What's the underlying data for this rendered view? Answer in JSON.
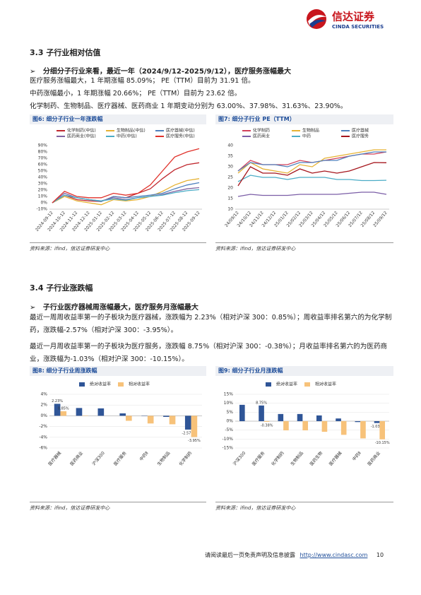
{
  "header": {
    "logo_cn": "信达证券",
    "logo_en": "CINDA SECURITIES"
  },
  "sections": [
    {
      "title": "3.3 子行业相对估值",
      "bullet": "分细分子行业来看，最近一年（2024/9/12-2025/9/12），医疗服务涨幅最大",
      "paragraphs": [
        "医疗服务涨幅最大，1 年期涨幅 85.09%； PE（TTM）目前为 31.91 倍。",
        "中药涨幅最小，1 年期涨幅 20.66%； PE（TTM）目前为 23.62 倍。",
        "化学制药、生物制品、医疗器械、医药商业 1 年期变动分别为 63.00%、37.98%、31.63%、23.90%。"
      ]
    },
    {
      "title": "3.4 子行业涨跌幅",
      "bullet": "子行业医疗器械周涨幅最大，医疗服务月涨幅最大",
      "paragraphs": [
        "最近一周周收益率第一的子板块为医疗器械，涨跌幅为 2.23%（相对沪深 300：0.85%）；周收益率排名第六的为化学制药，涨跌幅-2.57%（相对沪深 300：-3.95%）。",
        "最近一月周收益率第一的子板块为医疗服务，涨跌幅 8.75%（相对沪深 300：-0.38%）；月收益率排名第六的为医药商业，涨跌幅为-1.03%（相对沪深 300：-10.15%）。"
      ]
    }
  ],
  "chart_data": [
    {
      "type": "line",
      "title": "图6: 细分子行业一年涨跌幅",
      "source": "资料来源：ifind，信达证券研发中心",
      "categories": [
        "2024-09-12",
        "2024-10-12",
        "2024-11-12",
        "2024-12-12",
        "2025-01-12",
        "2025-02-12",
        "2025-03-12",
        "2025-04-12",
        "2025-05-12",
        "2025-06-12",
        "2025-07-12",
        "2025-08-12",
        "2025-09-12"
      ],
      "series": [
        {
          "name": "化学制药(中信)",
          "color": "#c0282e",
          "values": [
            0,
            12,
            5,
            3,
            2,
            10,
            8,
            15,
            22,
            38,
            52,
            60,
            63.0
          ]
        },
        {
          "name": "生物制品(中信)",
          "color": "#e6b233",
          "values": [
            0,
            10,
            3,
            0,
            -3,
            5,
            3,
            5,
            10,
            18,
            28,
            35,
            37.98
          ]
        },
        {
          "name": "医疗器械(中信)",
          "color": "#4f81bd",
          "values": [
            0,
            12,
            8,
            5,
            2,
            10,
            8,
            10,
            12,
            15,
            22,
            28,
            31.63
          ]
        },
        {
          "name": "医药商业(中信)",
          "color": "#8064a2",
          "values": [
            0,
            15,
            8,
            5,
            3,
            8,
            5,
            8,
            10,
            13,
            18,
            22,
            23.9
          ]
        },
        {
          "name": "中药(中信)",
          "color": "#4bacc6",
          "values": [
            0,
            12,
            8,
            5,
            3,
            6,
            4,
            8,
            10,
            12,
            16,
            19,
            20.66
          ]
        },
        {
          "name": "医疗服务(中信)",
          "color": "#e0312a",
          "values": [
            0,
            18,
            10,
            8,
            8,
            15,
            12,
            15,
            28,
            50,
            72,
            80,
            85.09
          ]
        }
      ],
      "ylim": [
        -10,
        90
      ],
      "yticks": [
        {
          "value": -10,
          "label": "-10%"
        },
        {
          "value": 0,
          "label": "0%"
        },
        {
          "value": 10,
          "label": "10%"
        },
        {
          "value": 20,
          "label": "20%"
        },
        {
          "value": 30,
          "label": "30%"
        },
        {
          "value": 40,
          "label": "40%"
        },
        {
          "value": 50,
          "label": "50%"
        },
        {
          "value": 60,
          "label": "60%"
        },
        {
          "value": 70,
          "label": "70%"
        },
        {
          "value": 80,
          "label": "80%"
        },
        {
          "value": 90,
          "label": "90%"
        }
      ]
    },
    {
      "type": "line",
      "title": "图7: 细分子行业 PE（TTM）",
      "source": "资料来源：ifind，信达证券研发中心",
      "categories": [
        "24/09/12",
        "24/10/12",
        "24/11/12",
        "24/12/12",
        "25/01/12",
        "25/02/12",
        "25/03/12",
        "25/04/12",
        "25/05/12",
        "25/06/12",
        "25/07/12",
        "25/08/12",
        "25/09/12"
      ],
      "series": [
        {
          "name": "化学制药",
          "color": "#d2415b",
          "values": [
            28,
            33,
            31,
            31,
            31,
            33,
            32,
            33,
            34,
            35,
            36,
            36,
            37
          ]
        },
        {
          "name": "生物制品",
          "color": "#e6b233",
          "values": [
            27,
            32,
            29,
            28,
            27,
            31,
            30,
            34,
            35,
            36,
            37,
            38,
            38
          ]
        },
        {
          "name": "医疗器械",
          "color": "#4f81bd",
          "values": [
            28,
            32,
            31,
            31,
            30,
            32,
            32,
            33,
            33,
            35,
            36,
            37,
            37
          ]
        },
        {
          "name": "医药商业",
          "color": "#7b5ea7",
          "values": [
            16,
            17,
            16.5,
            16.5,
            16.5,
            17,
            17,
            17,
            17,
            17.5,
            18,
            18,
            17
          ]
        },
        {
          "name": "中药",
          "color": "#4bacc6",
          "values": [
            23,
            26,
            25,
            25,
            24,
            25,
            25,
            25,
            24,
            24,
            23.5,
            23.5,
            23.62
          ]
        },
        {
          "name": "医疗服务",
          "color": "#a5151c",
          "values": [
            21,
            30,
            27,
            27,
            26,
            29,
            27,
            28,
            27,
            28,
            30,
            32,
            31.91
          ]
        }
      ],
      "ylim": [
        10,
        40
      ],
      "yticks": [
        10,
        15,
        20,
        25,
        30,
        35,
        40
      ]
    },
    {
      "type": "bar",
      "title": "图8: 细分子行业周涨跌幅",
      "source": "资料来源：ifind，信达证券研发中心",
      "categories": [
        "医疗器械",
        "医药商业",
        "沪深300",
        "医疗服务",
        "中药Ⅱ",
        "生物制品",
        "化学制药"
      ],
      "series": [
        {
          "name": "绝对收益率",
          "color": "#2f5597",
          "values": [
            2.23,
            1.45,
            1.38,
            0.45,
            -0.05,
            -0.2,
            -2.57
          ],
          "value_labels": [
            "2.23%",
            null,
            null,
            null,
            null,
            null,
            "-2.57%"
          ]
        },
        {
          "name": "相对收益率",
          "color": "#f7c27a",
          "values": [
            0.85,
            0.07,
            0,
            -0.93,
            -1.43,
            -1.58,
            -3.95
          ],
          "value_labels": [
            "0.85%",
            null,
            null,
            null,
            null,
            null,
            "-3.95%"
          ]
        }
      ],
      "ylim": [
        -6,
        4
      ],
      "yticks": [
        {
          "value": -6,
          "label": "-6%"
        },
        {
          "value": -4,
          "label": "-4%"
        },
        {
          "value": -2,
          "label": "-2%"
        },
        {
          "value": 0,
          "label": "0%"
        },
        {
          "value": 2,
          "label": "2%"
        },
        {
          "value": 4,
          "label": "4%"
        }
      ]
    },
    {
      "type": "bar",
      "title": "图9: 细分子行业月涨跌幅",
      "source": "资料来源：ifind，信达证券研发中心",
      "categories": [
        "沪深300",
        "医疗服务",
        "化学制药",
        "生物制品",
        "医药生物",
        "医疗器械",
        "中药Ⅱ",
        "医药商业"
      ],
      "series": [
        {
          "name": "绝对收益率",
          "color": "#2f5597",
          "values": [
            9.13,
            8.75,
            4.0,
            4.0,
            3.2,
            1.5,
            -0.5,
            -1.03
          ],
          "value_labels": [
            null,
            "8.75%",
            null,
            null,
            null,
            null,
            null,
            "-1.03%"
          ]
        },
        {
          "name": "相对收益率",
          "color": "#f7c27a",
          "values": [
            0,
            -0.38,
            -5.13,
            -5.13,
            -5.93,
            -7.63,
            -9.63,
            -10.15
          ],
          "value_labels": [
            null,
            "-0.38%",
            null,
            null,
            null,
            null,
            null,
            "-10.15%"
          ]
        }
      ],
      "ylim": [
        -15,
        15
      ],
      "yticks": [
        {
          "value": -15,
          "label": "-15%"
        },
        {
          "value": -10,
          "label": "-10%"
        },
        {
          "value": -5,
          "label": "-5%"
        },
        {
          "value": 0,
          "label": "0%"
        },
        {
          "value": 5,
          "label": "5%"
        },
        {
          "value": 10,
          "label": "10%"
        },
        {
          "value": 15,
          "label": "15%"
        }
      ]
    }
  ],
  "footer": {
    "disclaimer": "请阅读最后一页免责声明及信息披露",
    "url": "http://www.cindasc.com",
    "page": 10
  }
}
